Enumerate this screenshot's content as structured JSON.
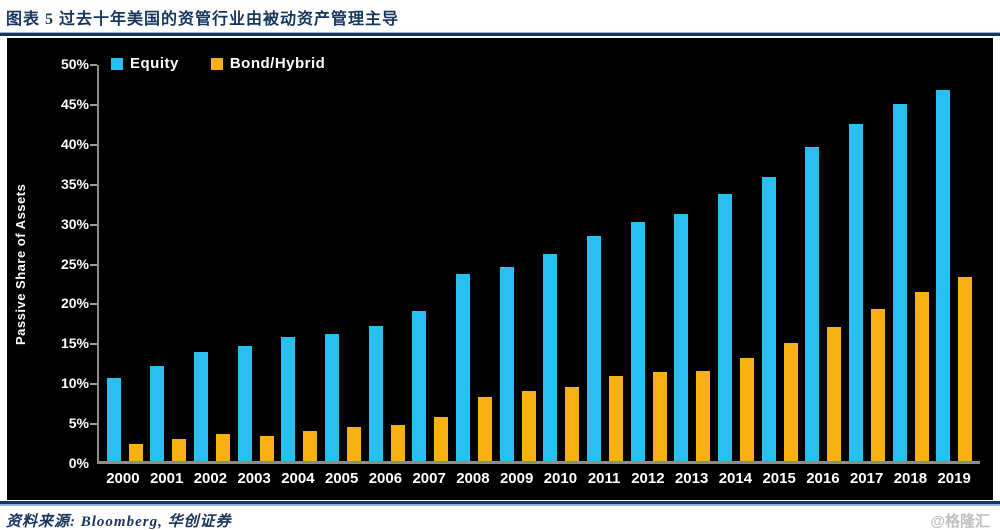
{
  "header": {
    "title": "图表 5 过去十年美国的资管行业由被动资产管理主导"
  },
  "chart_data": {
    "type": "bar",
    "title": "图表 5 过去十年美国的资管行业由被动资产管理主导",
    "xlabel": "",
    "ylabel": "Passive Share of Assets",
    "background": "#000000",
    "text_color": "#ffffff",
    "grid": false,
    "legend_position": "top-left",
    "ylim": [
      0,
      50
    ],
    "yticks": [
      0,
      5,
      10,
      15,
      20,
      25,
      30,
      35,
      40,
      45,
      50
    ],
    "ytick_suffix": "%",
    "categories": [
      "2000",
      "2001",
      "2002",
      "2003",
      "2004",
      "2005",
      "2006",
      "2007",
      "2008",
      "2009",
      "2010",
      "2011",
      "2012",
      "2013",
      "2014",
      "2015",
      "2016",
      "2017",
      "2018",
      "2019"
    ],
    "series": [
      {
        "name": "Equity",
        "color": "#29BFF0",
        "values": [
          10.5,
          12.0,
          13.8,
          14.5,
          15.7,
          16.1,
          17.1,
          19.0,
          23.6,
          24.5,
          26.1,
          28.4,
          30.2,
          31.2,
          33.7,
          35.8,
          39.7,
          42.5,
          45.1,
          46.9
        ]
      },
      {
        "name": "Bond/Hybrid",
        "color": "#F9B013",
        "values": [
          2.2,
          2.8,
          3.4,
          3.2,
          3.8,
          4.3,
          4.6,
          5.6,
          8.1,
          8.8,
          9.3,
          10.7,
          11.2,
          11.4,
          13.0,
          14.9,
          16.9,
          19.2,
          21.4,
          23.2
        ]
      }
    ]
  },
  "footer": {
    "source_label": "资料来源: Bloomberg, 华创证券",
    "watermark": "@格隆汇"
  }
}
